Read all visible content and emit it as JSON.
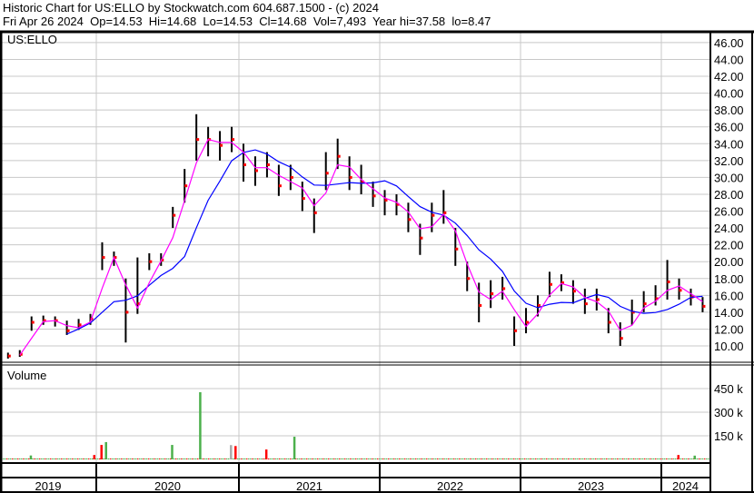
{
  "header": {
    "line1": "Historic Chart for US:ELLO by Stockwatch.com 604.687.1500 - (c) 2024",
    "line2": "Fri Apr 26 2024  Op=14.53  Hi=14.68  Lo=14.53  Cl=14.68  Vol=7,493  Year hi=37.58  lo=8.47"
  },
  "chart_data": [
    {
      "type": "ohlc",
      "title": "US:ELLO",
      "ylim": [
        8,
        47
      ],
      "yticks": [
        "10.00",
        "12.00",
        "14.00",
        "16.00",
        "18.00",
        "20.00",
        "22.00",
        "24.00",
        "26.00",
        "28.00",
        "30.00",
        "32.00",
        "34.00",
        "36.00",
        "38.00",
        "40.00",
        "42.00",
        "44.00",
        "46.00"
      ],
      "xticks": [
        "2019",
        "2020",
        "2021",
        "2022",
        "2023",
        "2024"
      ],
      "grid": true,
      "colors": {
        "bar": "#000000",
        "close": "#ff0000",
        "ma_short": "#ff00ff",
        "ma_long": "#0000ff"
      },
      "dates": [
        "2019-05",
        "2019-06",
        "2019-07",
        "2019-08",
        "2019-09",
        "2019-10",
        "2019-11",
        "2019-12",
        "2020-01",
        "2020-02",
        "2020-03",
        "2020-04",
        "2020-05",
        "2020-06",
        "2020-07",
        "2020-08",
        "2020-09",
        "2020-10",
        "2020-11",
        "2020-12",
        "2021-01",
        "2021-02",
        "2021-03",
        "2021-04",
        "2021-05",
        "2021-06",
        "2021-07",
        "2021-08",
        "2021-09",
        "2021-10",
        "2021-11",
        "2021-12",
        "2022-01",
        "2022-02",
        "2022-03",
        "2022-04",
        "2022-05",
        "2022-06",
        "2022-07",
        "2022-08",
        "2022-09",
        "2022-10",
        "2022-11",
        "2022-12",
        "2023-01",
        "2023-02",
        "2023-03",
        "2023-04",
        "2023-05",
        "2023-06",
        "2023-07",
        "2023-08",
        "2023-09",
        "2023-10",
        "2023-11",
        "2023-12",
        "2024-01",
        "2024-02",
        "2024-03",
        "2024-04"
      ],
      "high": [
        9.2,
        9.5,
        13.5,
        13.6,
        13.5,
        13.0,
        13.2,
        13.8,
        22.3,
        21.2,
        18.0,
        20.5,
        21.0,
        21.0,
        26.5,
        31.0,
        37.5,
        36.0,
        35.5,
        36.0,
        34.0,
        32.5,
        33.0,
        31.5,
        31.5,
        29.5,
        27.5,
        33.0,
        34.6,
        32.5,
        31.5,
        29.5,
        28.5,
        28.0,
        27.0,
        24.5,
        27.0,
        28.5,
        24.0,
        20.0,
        17.5,
        17.8,
        18.2,
        13.5,
        14.5,
        16.0,
        18.8,
        18.5,
        17.8,
        16.8,
        16.8,
        14.5,
        12.8,
        15.5,
        16.5,
        17.2,
        20.2,
        18.0,
        16.8,
        15.8
      ],
      "low": [
        8.5,
        8.7,
        11.8,
        12.5,
        12.3,
        11.3,
        11.9,
        12.5,
        19.0,
        19.5,
        10.4,
        13.8,
        19.0,
        19.5,
        24.0,
        27.0,
        32.0,
        32.5,
        32.0,
        33.0,
        29.5,
        29.0,
        30.0,
        27.8,
        28.5,
        26.0,
        23.4,
        28.5,
        31.0,
        28.5,
        28.0,
        26.5,
        25.5,
        25.5,
        23.5,
        20.8,
        23.5,
        24.5,
        19.5,
        16.5,
        12.8,
        14.5,
        15.5,
        10.0,
        11.5,
        13.5,
        15.8,
        16.5,
        15.0,
        13.8,
        14.2,
        11.5,
        10.0,
        12.5,
        14.0,
        14.8,
        15.5,
        15.5,
        14.8,
        14.0
      ],
      "close": [
        8.8,
        9.0,
        12.8,
        13.0,
        13.0,
        11.8,
        12.5,
        13.2,
        20.5,
        20.5,
        14.0,
        15.0,
        20.0,
        20.2,
        25.5,
        29.0,
        34.5,
        34.5,
        33.8,
        34.5,
        31.5,
        30.8,
        31.5,
        29.0,
        30.0,
        27.5,
        25.8,
        30.5,
        32.5,
        30.0,
        29.5,
        27.8,
        27.3,
        26.8,
        25.0,
        22.8,
        25.5,
        25.8,
        21.5,
        18.0,
        14.8,
        16.2,
        16.8,
        11.8,
        12.8,
        14.8,
        17.3,
        17.5,
        16.5,
        15.0,
        15.5,
        12.8,
        10.9,
        14.0,
        15.0,
        15.6,
        17.6,
        16.6,
        15.8,
        14.7
      ]
    },
    {
      "type": "bar",
      "title": "Volume",
      "ylim": [
        0,
        500000
      ],
      "yticks": [
        "150 k",
        "300 k",
        "450 k"
      ],
      "colors": {
        "up": "#4cb04c",
        "down": "#ff0000",
        "flat": "#aaaaaa"
      },
      "baseline_volume": 6000,
      "spikes": [
        {
          "date": "2019-07",
          "value": 25000,
          "dir": "up"
        },
        {
          "date": "2019-12",
          "value": 28000,
          "dir": "down"
        },
        {
          "date": "2020-01",
          "value": 92000,
          "dir": "down"
        },
        {
          "date": "2020-01",
          "value": 110000,
          "dir": "up"
        },
        {
          "date": "2020-07",
          "value": 92000,
          "dir": "up"
        },
        {
          "date": "2020-09",
          "value": 427000,
          "dir": "up"
        },
        {
          "date": "2020-12",
          "value": 91000,
          "dir": "flat"
        },
        {
          "date": "2020-12",
          "value": 85000,
          "dir": "down"
        },
        {
          "date": "2021-03",
          "value": 63000,
          "dir": "down"
        },
        {
          "date": "2021-05",
          "value": 144000,
          "dir": "up"
        },
        {
          "date": "2024-02",
          "value": 28000,
          "dir": "down"
        },
        {
          "date": "2024-03",
          "value": 24000,
          "dir": "up"
        }
      ]
    }
  ]
}
